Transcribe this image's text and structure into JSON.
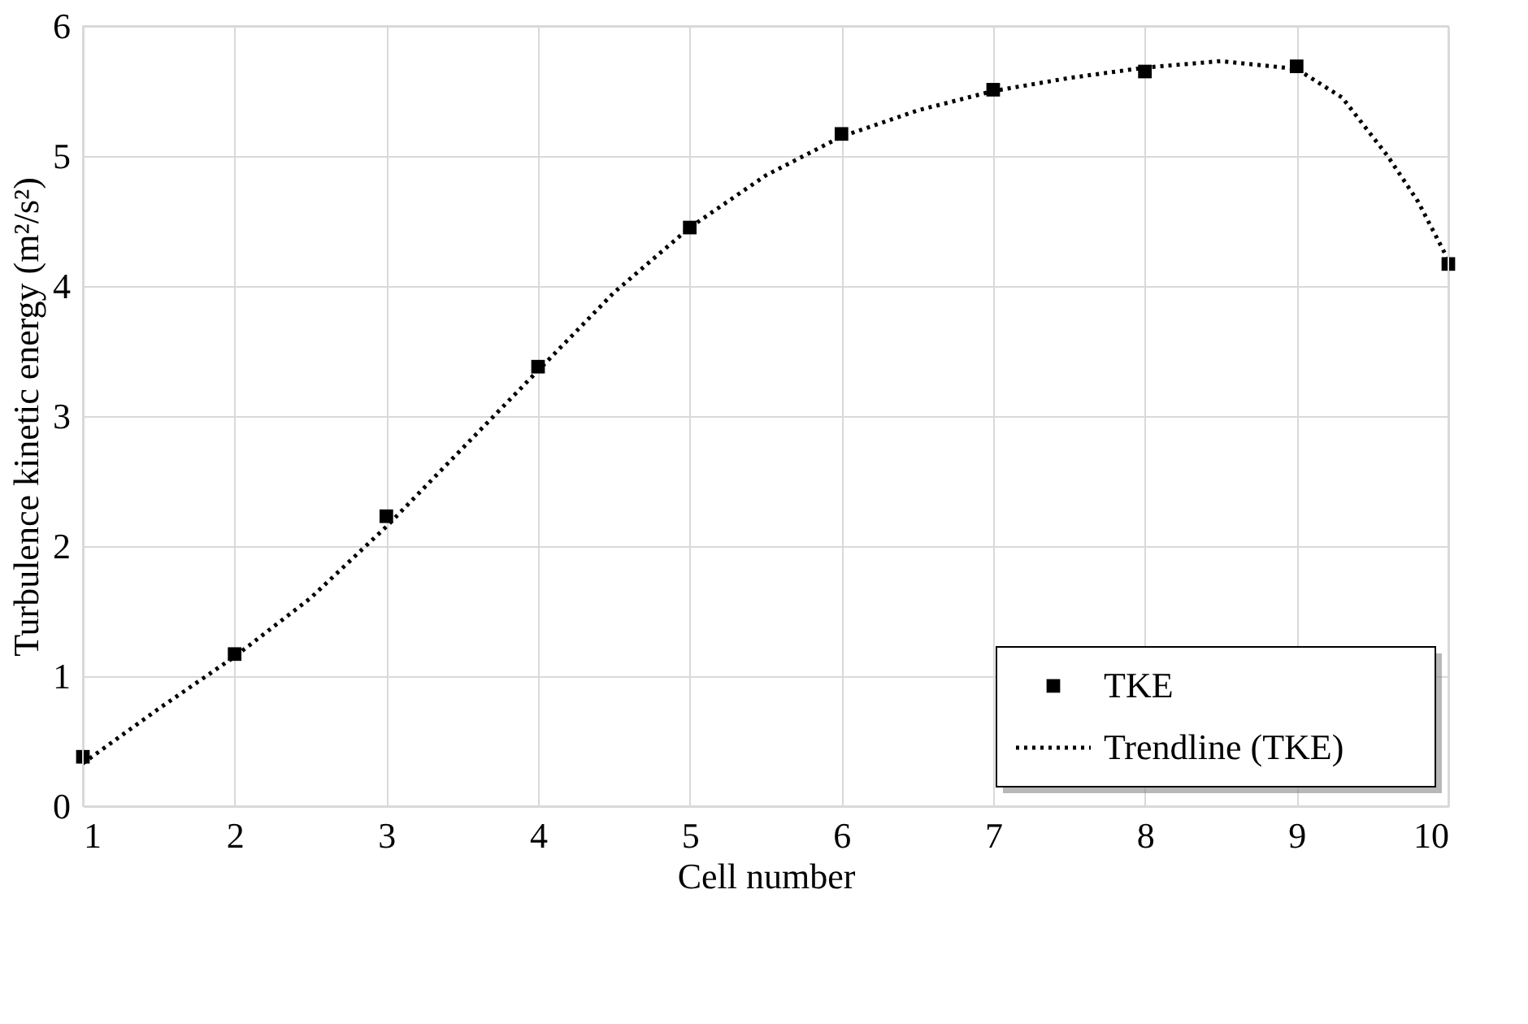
{
  "chart_data": {
    "type": "scatter",
    "xlabel": "Cell number",
    "ylabel": "Turbulence kinetic energy (m²/s²)",
    "x": [
      1,
      2,
      3,
      4,
      5,
      6,
      7,
      8,
      9,
      10
    ],
    "series": [
      {
        "name": "TKE",
        "color": "#000000",
        "marker": "square",
        "values": [
          0.38,
          1.17,
          2.23,
          3.38,
          4.45,
          5.17,
          5.51,
          5.65,
          5.69,
          4.17
        ]
      },
      {
        "name": "Trendline (TKE)",
        "type": "line",
        "color": "#000000",
        "line_style": "dotted",
        "marker": "none",
        "x": [
          1,
          1.5,
          2,
          2.5,
          3,
          3.5,
          4,
          4.5,
          5,
          5.5,
          6,
          6.5,
          7,
          7.5,
          8,
          8.5,
          9,
          9.3,
          9.6,
          9.8,
          10
        ],
        "values": [
          0.33,
          0.75,
          1.15,
          1.6,
          2.15,
          2.75,
          3.35,
          3.95,
          4.45,
          4.85,
          5.15,
          5.35,
          5.5,
          5.6,
          5.68,
          5.73,
          5.67,
          5.45,
          5.0,
          4.65,
          4.2
        ]
      }
    ],
    "xlim": [
      1,
      10
    ],
    "xticks": [
      1,
      2,
      3,
      4,
      5,
      6,
      7,
      8,
      9,
      10
    ],
    "ylim": [
      0,
      6
    ],
    "yticks": [
      0,
      1,
      2,
      3,
      4,
      5,
      6
    ],
    "grid": true,
    "legend": "bottom right"
  }
}
